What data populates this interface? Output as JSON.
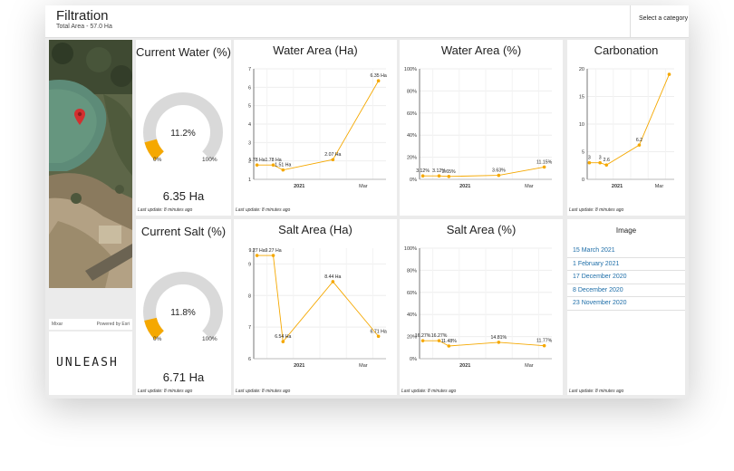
{
  "header": {
    "title": "Filtration",
    "subtitle": "Total Area - 57.0 Ha",
    "category_select": "Select a category"
  },
  "map": {
    "attribution_left": "Mixar",
    "attribution_right": "Powered by Esri",
    "marker_icon": "map-pin-icon",
    "marker_color": "#d32f2f"
  },
  "logo": {
    "text": "UNLEASH"
  },
  "gauges": [
    {
      "title": "Current Water (%)",
      "percent": 11.2,
      "percent_label": "11.2%",
      "min_label": "0%",
      "max_label": "100%",
      "value": "6.35 Ha",
      "update": "Last update: 8 minutes ago"
    },
    {
      "title": "Current Salt (%)",
      "percent": 11.8,
      "percent_label": "11.8%",
      "min_label": "0%",
      "max_label": "100%",
      "value": "6.71 Ha",
      "update": "Last update: 8 minutes ago"
    }
  ],
  "chart_data": [
    {
      "type": "line",
      "title": "Water Area (Ha)",
      "ylim": [
        1,
        7
      ],
      "yticks": [
        "1",
        "2",
        "3",
        "4",
        "5",
        "6",
        "7"
      ],
      "x": [
        "2020-11-23",
        "2020-12-08",
        "2020-12-17",
        "2021-02-01",
        "2021-03-15"
      ],
      "values": [
        1.78,
        1.78,
        1.51,
        2.07,
        6.35
      ],
      "point_labels": [
        "1.78 Ha",
        "1.78 Ha",
        "1.51 Ha",
        "2.07 Ha",
        "6.35 Ha"
      ],
      "xtick_labels": [
        "2021",
        "Mar"
      ],
      "update": "Last update: 8 minutes ago"
    },
    {
      "type": "line",
      "title": "Water Area (%)",
      "ylim": [
        0,
        100
      ],
      "yticks": [
        "0%",
        "20%",
        "40%",
        "60%",
        "80%",
        "100%"
      ],
      "x": [
        "2020-11-23",
        "2020-12-08",
        "2020-12-17",
        "2021-02-01",
        "2021-03-15"
      ],
      "values": [
        3.12,
        3.12,
        2.65,
        3.63,
        11.15
      ],
      "point_labels": [
        "3.12%",
        "3.12%",
        "2.65%",
        "3.63%",
        "11.15%"
      ],
      "xtick_labels": [
        "2021",
        "Mar"
      ],
      "update": "Last update: 8 minutes ago"
    },
    {
      "type": "line",
      "title": "Carbonation",
      "ylim": [
        0,
        20
      ],
      "yticks": [
        "0",
        "5",
        "10",
        "15",
        "20"
      ],
      "x": [
        "2020-11-23",
        "2020-12-08",
        "2020-12-17",
        "2021-02-01",
        "2021-03-15"
      ],
      "values": [
        3,
        3,
        2.6,
        6.2,
        19
      ],
      "point_labels": [
        "3",
        "3",
        "2.6",
        "6.2",
        ""
      ],
      "xtick_labels": [
        "2021",
        "Mar"
      ],
      "update": "Last update: 8 minutes ago"
    },
    {
      "type": "line",
      "title": "Salt Area (Ha)",
      "ylim": [
        6,
        9.5
      ],
      "yticks": [
        "6",
        "7",
        "8",
        "9"
      ],
      "x": [
        "2020-11-23",
        "2020-12-08",
        "2020-12-17",
        "2021-02-01",
        "2021-03-15"
      ],
      "values": [
        9.27,
        9.27,
        6.54,
        8.44,
        6.71
      ],
      "point_labels": [
        "9.27 Ha",
        "9.27 Ha",
        "6.54 Ha",
        "8.44 Ha",
        "6.71 Ha"
      ],
      "xtick_labels": [
        "2021",
        "Mar"
      ],
      "update": "Last update: 8 minutes ago"
    },
    {
      "type": "line",
      "title": "Salt Area (%)",
      "ylim": [
        0,
        100
      ],
      "yticks": [
        "0%",
        "20%",
        "40%",
        "60%",
        "80%",
        "100%"
      ],
      "x": [
        "2020-11-23",
        "2020-12-08",
        "2020-12-17",
        "2021-02-01",
        "2021-03-15"
      ],
      "values": [
        16.27,
        16.27,
        11.48,
        14.81,
        11.77
      ],
      "point_labels": [
        "16.27%",
        "16.27%",
        "11.48%",
        "14.81%",
        "11.77%"
      ],
      "xtick_labels": [
        "2021",
        "Mar"
      ],
      "update": "Last update: 8 minutes ago"
    }
  ],
  "image_list": {
    "title": "Image",
    "items": [
      "15 March 2021",
      "1 February 2021",
      "17 December 2020",
      "8 December 2020",
      "23 November 2020"
    ],
    "update": "Last update: 8 minutes ago"
  },
  "colors": {
    "series": "#f5a800",
    "gauge_track": "#d9d9d9",
    "gauge_fill": "#f5a800",
    "link": "#1e6ea8"
  }
}
